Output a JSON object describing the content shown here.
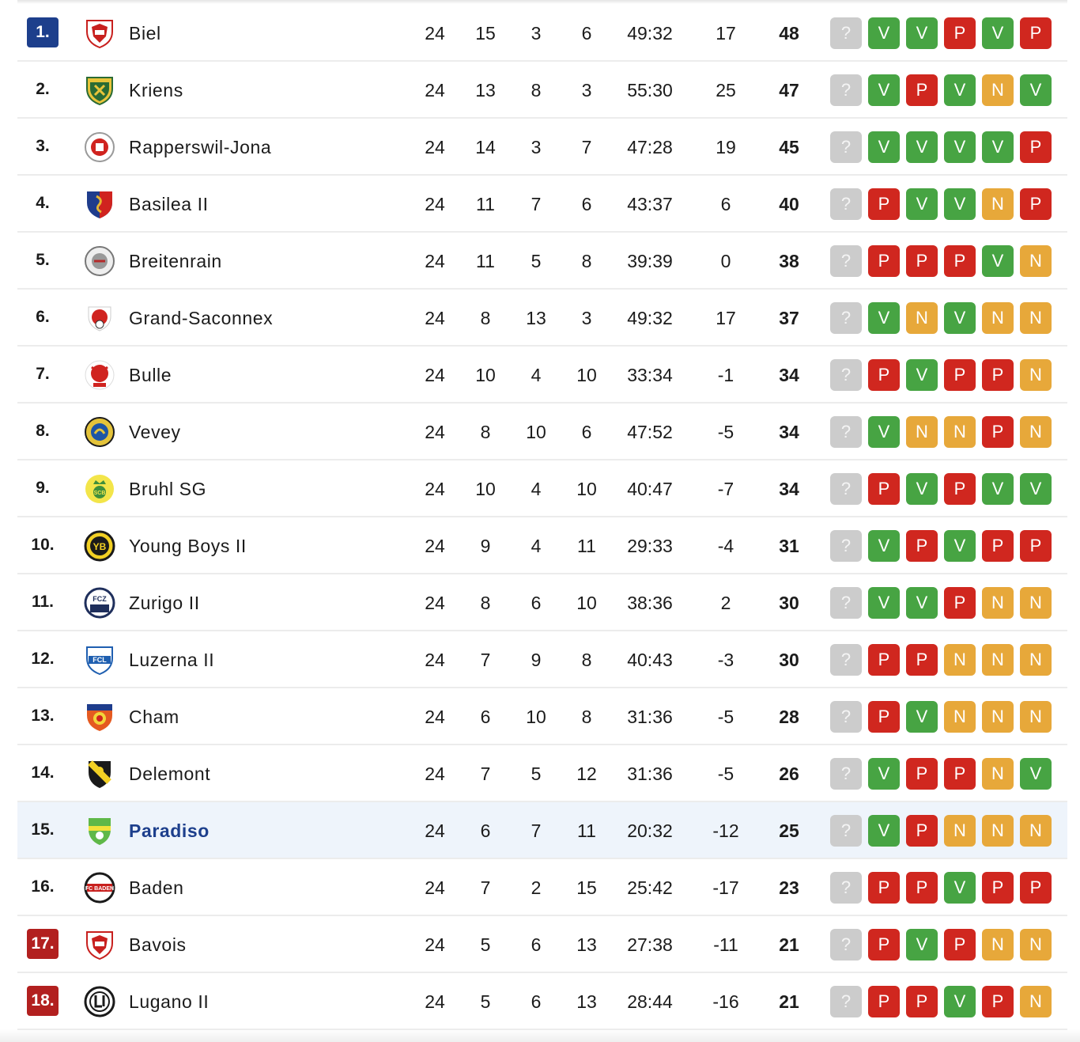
{
  "colors": {
    "rank_top": "#1d3f8c",
    "rank_relegation": "#b2201f",
    "win": "#47a443",
    "loss": "#d0271f",
    "draw": "#e7a83a",
    "unknown": "#cccccc",
    "highlight": "#eef4fb"
  },
  "rows": [
    {
      "rank": "1.",
      "rank_style": "blue",
      "team": "Biel",
      "logo": "shield-red",
      "played": "24",
      "wins": "15",
      "draws": "3",
      "losses": "6",
      "goals": "49:32",
      "diff": "17",
      "pts": "48",
      "form": [
        "?",
        "V",
        "V",
        "P",
        "V",
        "P"
      ]
    },
    {
      "rank": "2.",
      "rank_style": "",
      "team": "Kriens",
      "logo": "shield-green-yellow",
      "played": "24",
      "wins": "13",
      "draws": "8",
      "losses": "3",
      "goals": "55:30",
      "diff": "25",
      "pts": "47",
      "form": [
        "?",
        "V",
        "P",
        "V",
        "N",
        "V"
      ]
    },
    {
      "rank": "3.",
      "rank_style": "",
      "team": "Rapperswil-Jona",
      "logo": "round-red-white",
      "played": "24",
      "wins": "14",
      "draws": "3",
      "losses": "7",
      "goals": "47:28",
      "diff": "19",
      "pts": "45",
      "form": [
        "?",
        "V",
        "V",
        "V",
        "V",
        "P"
      ]
    },
    {
      "rank": "4.",
      "rank_style": "",
      "team": "Basilea II",
      "logo": "shield-red-blue",
      "played": "24",
      "wins": "11",
      "draws": "7",
      "losses": "6",
      "goals": "43:37",
      "diff": "6",
      "pts": "40",
      "form": [
        "?",
        "P",
        "V",
        "V",
        "N",
        "P"
      ]
    },
    {
      "rank": "5.",
      "rank_style": "",
      "team": "Breitenrain",
      "logo": "round-grey",
      "played": "24",
      "wins": "11",
      "draws": "5",
      "losses": "8",
      "goals": "39:39",
      "diff": "0",
      "pts": "38",
      "form": [
        "?",
        "P",
        "P",
        "P",
        "V",
        "N"
      ]
    },
    {
      "rank": "6.",
      "rank_style": "",
      "team": "Grand-Saconnex",
      "logo": "shield-red-ball",
      "played": "24",
      "wins": "8",
      "draws": "13",
      "losses": "3",
      "goals": "49:32",
      "diff": "17",
      "pts": "37",
      "form": [
        "?",
        "V",
        "N",
        "V",
        "N",
        "N"
      ]
    },
    {
      "rank": "7.",
      "rank_style": "",
      "team": "Bulle",
      "logo": "round-red-bull",
      "played": "24",
      "wins": "10",
      "draws": "4",
      "losses": "10",
      "goals": "33:34",
      "diff": "-1",
      "pts": "34",
      "form": [
        "?",
        "P",
        "V",
        "P",
        "P",
        "N"
      ]
    },
    {
      "rank": "8.",
      "rank_style": "",
      "team": "Vevey",
      "logo": "round-blue-yellow",
      "played": "24",
      "wins": "8",
      "draws": "10",
      "losses": "6",
      "goals": "47:52",
      "diff": "-5",
      "pts": "34",
      "form": [
        "?",
        "V",
        "N",
        "N",
        "P",
        "N"
      ]
    },
    {
      "rank": "9.",
      "rank_style": "",
      "team": "Bruhl SG",
      "logo": "round-yellow-crown",
      "played": "24",
      "wins": "10",
      "draws": "4",
      "losses": "10",
      "goals": "40:47",
      "diff": "-7",
      "pts": "34",
      "form": [
        "?",
        "P",
        "V",
        "P",
        "V",
        "V"
      ]
    },
    {
      "rank": "10.",
      "rank_style": "",
      "team": "Young Boys II",
      "logo": "round-black-yellow",
      "played": "24",
      "wins": "9",
      "draws": "4",
      "losses": "11",
      "goals": "29:33",
      "diff": "-4",
      "pts": "31",
      "form": [
        "?",
        "V",
        "P",
        "V",
        "P",
        "P"
      ]
    },
    {
      "rank": "11.",
      "rank_style": "",
      "team": "Zurigo II",
      "logo": "round-navy-white",
      "played": "24",
      "wins": "8",
      "draws": "6",
      "losses": "10",
      "goals": "38:36",
      "diff": "2",
      "pts": "30",
      "form": [
        "?",
        "V",
        "V",
        "P",
        "N",
        "N"
      ]
    },
    {
      "rank": "12.",
      "rank_style": "",
      "team": "Luzerna II",
      "logo": "shield-blue-white",
      "played": "24",
      "wins": "7",
      "draws": "9",
      "losses": "8",
      "goals": "40:43",
      "diff": "-3",
      "pts": "30",
      "form": [
        "?",
        "P",
        "P",
        "N",
        "N",
        "N"
      ]
    },
    {
      "rank": "13.",
      "rank_style": "",
      "team": "Cham",
      "logo": "shield-red-orange",
      "played": "24",
      "wins": "6",
      "draws": "10",
      "losses": "8",
      "goals": "31:36",
      "diff": "-5",
      "pts": "28",
      "form": [
        "?",
        "P",
        "V",
        "N",
        "N",
        "N"
      ]
    },
    {
      "rank": "14.",
      "rank_style": "",
      "team": "Delemont",
      "logo": "shield-black-yellow",
      "played": "24",
      "wins": "7",
      "draws": "5",
      "losses": "12",
      "goals": "31:36",
      "diff": "-5",
      "pts": "26",
      "form": [
        "?",
        "V",
        "P",
        "P",
        "N",
        "V"
      ]
    },
    {
      "rank": "15.",
      "rank_style": "",
      "team": "Paradiso",
      "logo": "shield-green",
      "highlight": true,
      "played": "24",
      "wins": "6",
      "draws": "7",
      "losses": "11",
      "goals": "20:32",
      "diff": "-12",
      "pts": "25",
      "form": [
        "?",
        "V",
        "P",
        "N",
        "N",
        "N"
      ]
    },
    {
      "rank": "16.",
      "rank_style": "",
      "team": "Baden",
      "logo": "round-black-red",
      "played": "24",
      "wins": "7",
      "draws": "2",
      "losses": "15",
      "goals": "25:42",
      "diff": "-17",
      "pts": "23",
      "form": [
        "?",
        "P",
        "P",
        "V",
        "P",
        "P"
      ]
    },
    {
      "rank": "17.",
      "rank_style": "red",
      "team": "Bavois",
      "logo": "shield-red",
      "played": "24",
      "wins": "5",
      "draws": "6",
      "losses": "13",
      "goals": "27:38",
      "diff": "-11",
      "pts": "21",
      "form": [
        "?",
        "P",
        "V",
        "P",
        "N",
        "N"
      ]
    },
    {
      "rank": "18.",
      "rank_style": "red",
      "team": "Lugano II",
      "logo": "round-black-white",
      "played": "24",
      "wins": "5",
      "draws": "6",
      "losses": "13",
      "goals": "28:44",
      "diff": "-16",
      "pts": "21",
      "form": [
        "?",
        "P",
        "P",
        "V",
        "P",
        "N"
      ]
    }
  ]
}
